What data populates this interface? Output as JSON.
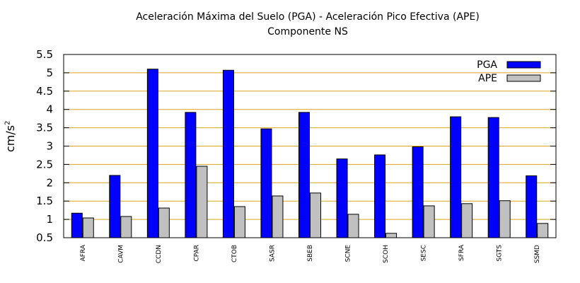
{
  "chart_data": {
    "type": "bar",
    "title": "Aceleración Máxima del Suelo (PGA) -  Aceleración Pico Efectiva (APE)",
    "subtitle": "Componente NS",
    "ylabel": "cm/s",
    "ylabel_sup": "2",
    "xlabel": "",
    "ylim": [
      0.5,
      5.5
    ],
    "yticks": [
      "0.5",
      "1",
      "1.5",
      "2",
      "2.5",
      "3",
      "3.5",
      "4",
      "4.5",
      "5",
      "5.5"
    ],
    "grid": "horizontal",
    "legend_position": "top-right",
    "categories": [
      "AFRA",
      "CAVM",
      "CCDN",
      "CPAR",
      "CTOB",
      "SASR",
      "SBEB",
      "SCNE",
      "SCOH",
      "SESC",
      "SFRA",
      "SGTS",
      "SSMD"
    ],
    "series": [
      {
        "name": "PGA",
        "color": "#0000ff",
        "values": [
          1.17,
          2.2,
          5.1,
          3.92,
          5.07,
          3.47,
          3.92,
          2.65,
          2.76,
          2.98,
          3.8,
          3.78,
          2.19
        ]
      },
      {
        "name": "APE",
        "color": "#c0c0c0",
        "values": [
          1.04,
          1.08,
          1.31,
          2.45,
          1.35,
          1.64,
          1.72,
          1.14,
          0.62,
          1.37,
          1.43,
          1.51,
          0.89
        ]
      }
    ],
    "grid_color": "#daa520"
  }
}
